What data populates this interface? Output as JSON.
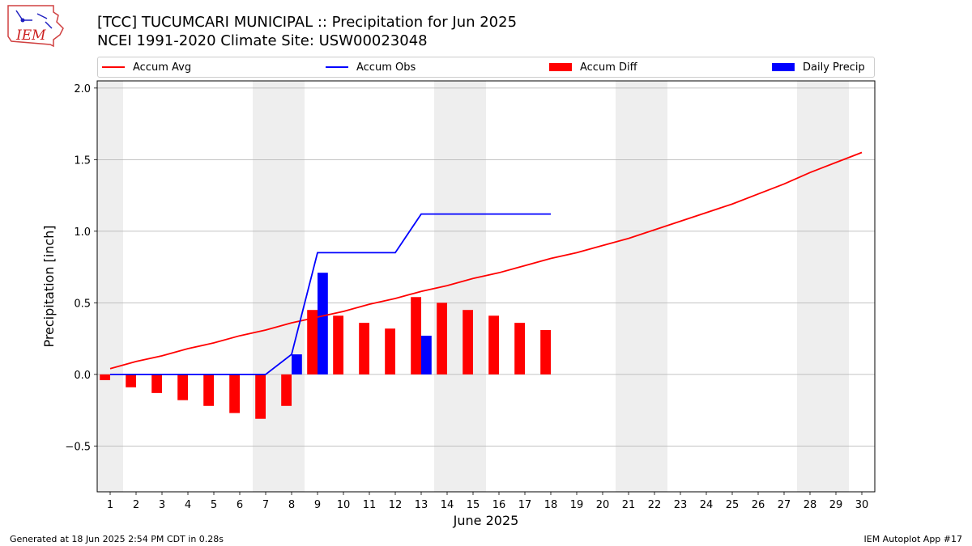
{
  "header": {
    "title_line1": "[TCC] TUCUMCARI MUNICIPAL :: Precipitation for Jun 2025",
    "title_line2": "NCEI 1991-2020 Climate Site: USW00023048"
  },
  "logo": {
    "text": "IEM",
    "icon": "iem-logo-icon"
  },
  "footer": {
    "left": "Generated at 18 Jun 2025 2:54 PM CDT in 0.28s",
    "right": "IEM Autoplot App #17"
  },
  "colors": {
    "avg": "#ff0000",
    "obs": "#0000ff",
    "diff": "#ff0000",
    "daily": "#0000ff",
    "weekend": "#eeeeee",
    "grid": "#b0b0b0"
  },
  "chart_data": {
    "type": "bar",
    "xlabel": "June 2025",
    "ylabel": "Precipitation [inch]",
    "ylim": [
      -0.82,
      2.05
    ],
    "yticks": [
      -0.5,
      0.0,
      0.5,
      1.0,
      1.5,
      2.0
    ],
    "ytick_labels": [
      "−0.5",
      "0.0",
      "0.5",
      "1.0",
      "1.5",
      "2.0"
    ],
    "xlim": [
      0.5,
      30.5
    ],
    "days": [
      1,
      2,
      3,
      4,
      5,
      6,
      7,
      8,
      9,
      10,
      11,
      12,
      13,
      14,
      15,
      16,
      17,
      18,
      19,
      20,
      21,
      22,
      23,
      24,
      25,
      26,
      27,
      28,
      29,
      30
    ],
    "shaded_days": [
      [
        1
      ],
      [
        7,
        8
      ],
      [
        14,
        15
      ],
      [
        21,
        22
      ],
      [
        28,
        29
      ]
    ],
    "grid": "horizontal",
    "legend_position": "top",
    "series": [
      {
        "name": "Accum Avg",
        "kind": "line",
        "color": "#ff0000",
        "values": [
          0.04,
          0.09,
          0.13,
          0.18,
          0.22,
          0.27,
          0.31,
          0.36,
          0.4,
          0.44,
          0.49,
          0.53,
          0.58,
          0.62,
          0.67,
          0.71,
          0.76,
          0.81,
          0.85,
          0.9,
          0.95,
          1.01,
          1.07,
          1.13,
          1.19,
          1.26,
          1.33,
          1.41,
          1.48,
          1.55
        ]
      },
      {
        "name": "Accum Obs",
        "kind": "line",
        "color": "#0000ff",
        "values": [
          0.0,
          0.0,
          0.0,
          0.0,
          0.0,
          0.0,
          0.0,
          0.14,
          0.85,
          0.85,
          0.85,
          0.85,
          1.12,
          1.12,
          1.12,
          1.12,
          1.12,
          1.12
        ]
      },
      {
        "name": "Accum Diff",
        "kind": "bar",
        "color": "#ff0000",
        "values": [
          -0.04,
          -0.09,
          -0.13,
          -0.18,
          -0.22,
          -0.27,
          -0.31,
          -0.22,
          0.45,
          0.41,
          0.36,
          0.32,
          0.54,
          0.5,
          0.45,
          0.41,
          0.36,
          0.31
        ]
      },
      {
        "name": "Daily Precip",
        "kind": "bar",
        "color": "#0000ff",
        "values": [
          0,
          0,
          0,
          0,
          0,
          0,
          0,
          0.14,
          0.71,
          0,
          0,
          0,
          0.27,
          0,
          0,
          0,
          0,
          0
        ]
      }
    ]
  }
}
